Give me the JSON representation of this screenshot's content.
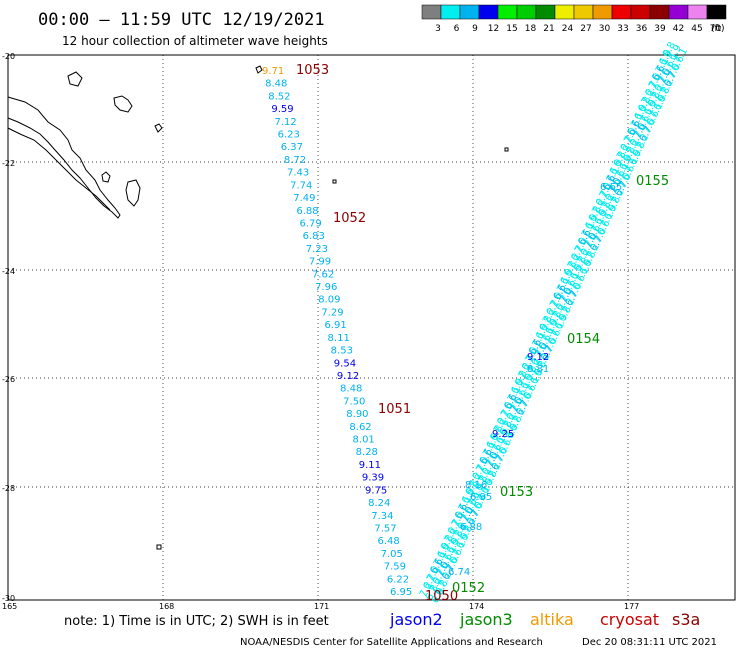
{
  "header": {
    "title": "00:00 – 11:59 UTC 12/19/2021",
    "subtitle": "12 hour collection of altimeter wave heights"
  },
  "legend": {
    "unit": "(ft)",
    "labels": [
      "3",
      "6",
      "9",
      "12",
      "15",
      "18",
      "21",
      "24",
      "27",
      "30",
      "33",
      "36",
      "39",
      "42",
      "45",
      "70"
    ],
    "colors": [
      "#7f7f7f",
      "#00eeee",
      "#00b2ee",
      "#0000ee",
      "#00ee00",
      "#00cd00",
      "#008b00",
      "#eeee00",
      "#eec900",
      "#ee9a00",
      "#ee0000",
      "#cd0000",
      "#8b0000",
      "#9400d3",
      "#ee82ee",
      "#000000"
    ]
  },
  "axes": {
    "lat_labels": [
      "-20",
      "-22",
      "-24",
      "-26",
      "-28",
      "-30"
    ],
    "lon_labels": [
      "165",
      "168",
      "171",
      "174",
      "177"
    ]
  },
  "footer": {
    "note": "note: 1) Time is in UTC; 2) SWH is in feet",
    "satellites": [
      {
        "name": "jason2",
        "color": "#0000ee"
      },
      {
        "name": "jason3",
        "color": "#008b00"
      },
      {
        "name": "altika",
        "color": "#ee9a00"
      },
      {
        "name": "cryosat",
        "color": "#cd0000"
      },
      {
        "name": "s3a",
        "color": "#8b0000"
      }
    ],
    "credit": "NOAA/NESDIS Center for Satellite Applications and Research",
    "timestamp": "Dec 20 08:31:11 UTC 2021"
  },
  "track_west": {
    "values": [
      "9.71",
      "8.48",
      "8.52",
      "9.59",
      "7.12",
      "6.23",
      "6.37",
      "8.72",
      "7.43",
      "7.74",
      "7.49",
      "6.88",
      "6.79",
      "6.83",
      "7.23",
      "7.99",
      "7.62",
      "7.96",
      "8.09",
      "7.29",
      "6.91",
      "8.11",
      "8.53",
      "9.54",
      "9.12",
      "8.48",
      "7.50",
      "8.90",
      "8.62",
      "8.01",
      "8.28",
      "9.11",
      "9.39",
      "9.75",
      "8.24",
      "7.34",
      "7.57",
      "6.48",
      "7.05",
      "7.59",
      "6.22",
      "6.95"
    ],
    "colors": [
      "#ee9a00",
      "#00b2ee",
      "#00b2ee",
      "#0000ee",
      "#00b2ee",
      "#00b2ee",
      "#00b2ee",
      "#00b2ee",
      "#00b2ee",
      "#00b2ee",
      "#00b2ee",
      "#00b2ee",
      "#00b2ee",
      "#00b2ee",
      "#00b2ee",
      "#00b2ee",
      "#00b2ee",
      "#00b2ee",
      "#00b2ee",
      "#00b2ee",
      "#00b2ee",
      "#00b2ee",
      "#00b2ee",
      "#0000ee",
      "#0000ee",
      "#00b2ee",
      "#00b2ee",
      "#00b2ee",
      "#00b2ee",
      "#00b2ee",
      "#00b2ee",
      "#0000ee",
      "#0000ee",
      "#0000ee",
      "#00b2ee",
      "#00b2ee",
      "#00b2ee",
      "#00b2ee",
      "#00b2ee",
      "#00b2ee",
      "#00b2ee",
      "#00b2ee"
    ]
  },
  "track_east": {
    "visible_values": [
      "6.65",
      "9.12",
      "8.81",
      "9.25",
      "8.16",
      "6.95",
      "6.88",
      "6.74"
    ]
  },
  "time_labels": [
    {
      "text": "1053",
      "color": "#8b0000"
    },
    {
      "text": "1052",
      "color": "#8b0000"
    },
    {
      "text": "1051",
      "color": "#8b0000"
    },
    {
      "text": "1050",
      "color": "#8b0000"
    },
    {
      "text": "0155",
      "color": "#008b00"
    },
    {
      "text": "0154",
      "color": "#008b00"
    },
    {
      "text": "0153",
      "color": "#008b00"
    },
    {
      "text": "0152",
      "color": "#008b00"
    }
  ]
}
